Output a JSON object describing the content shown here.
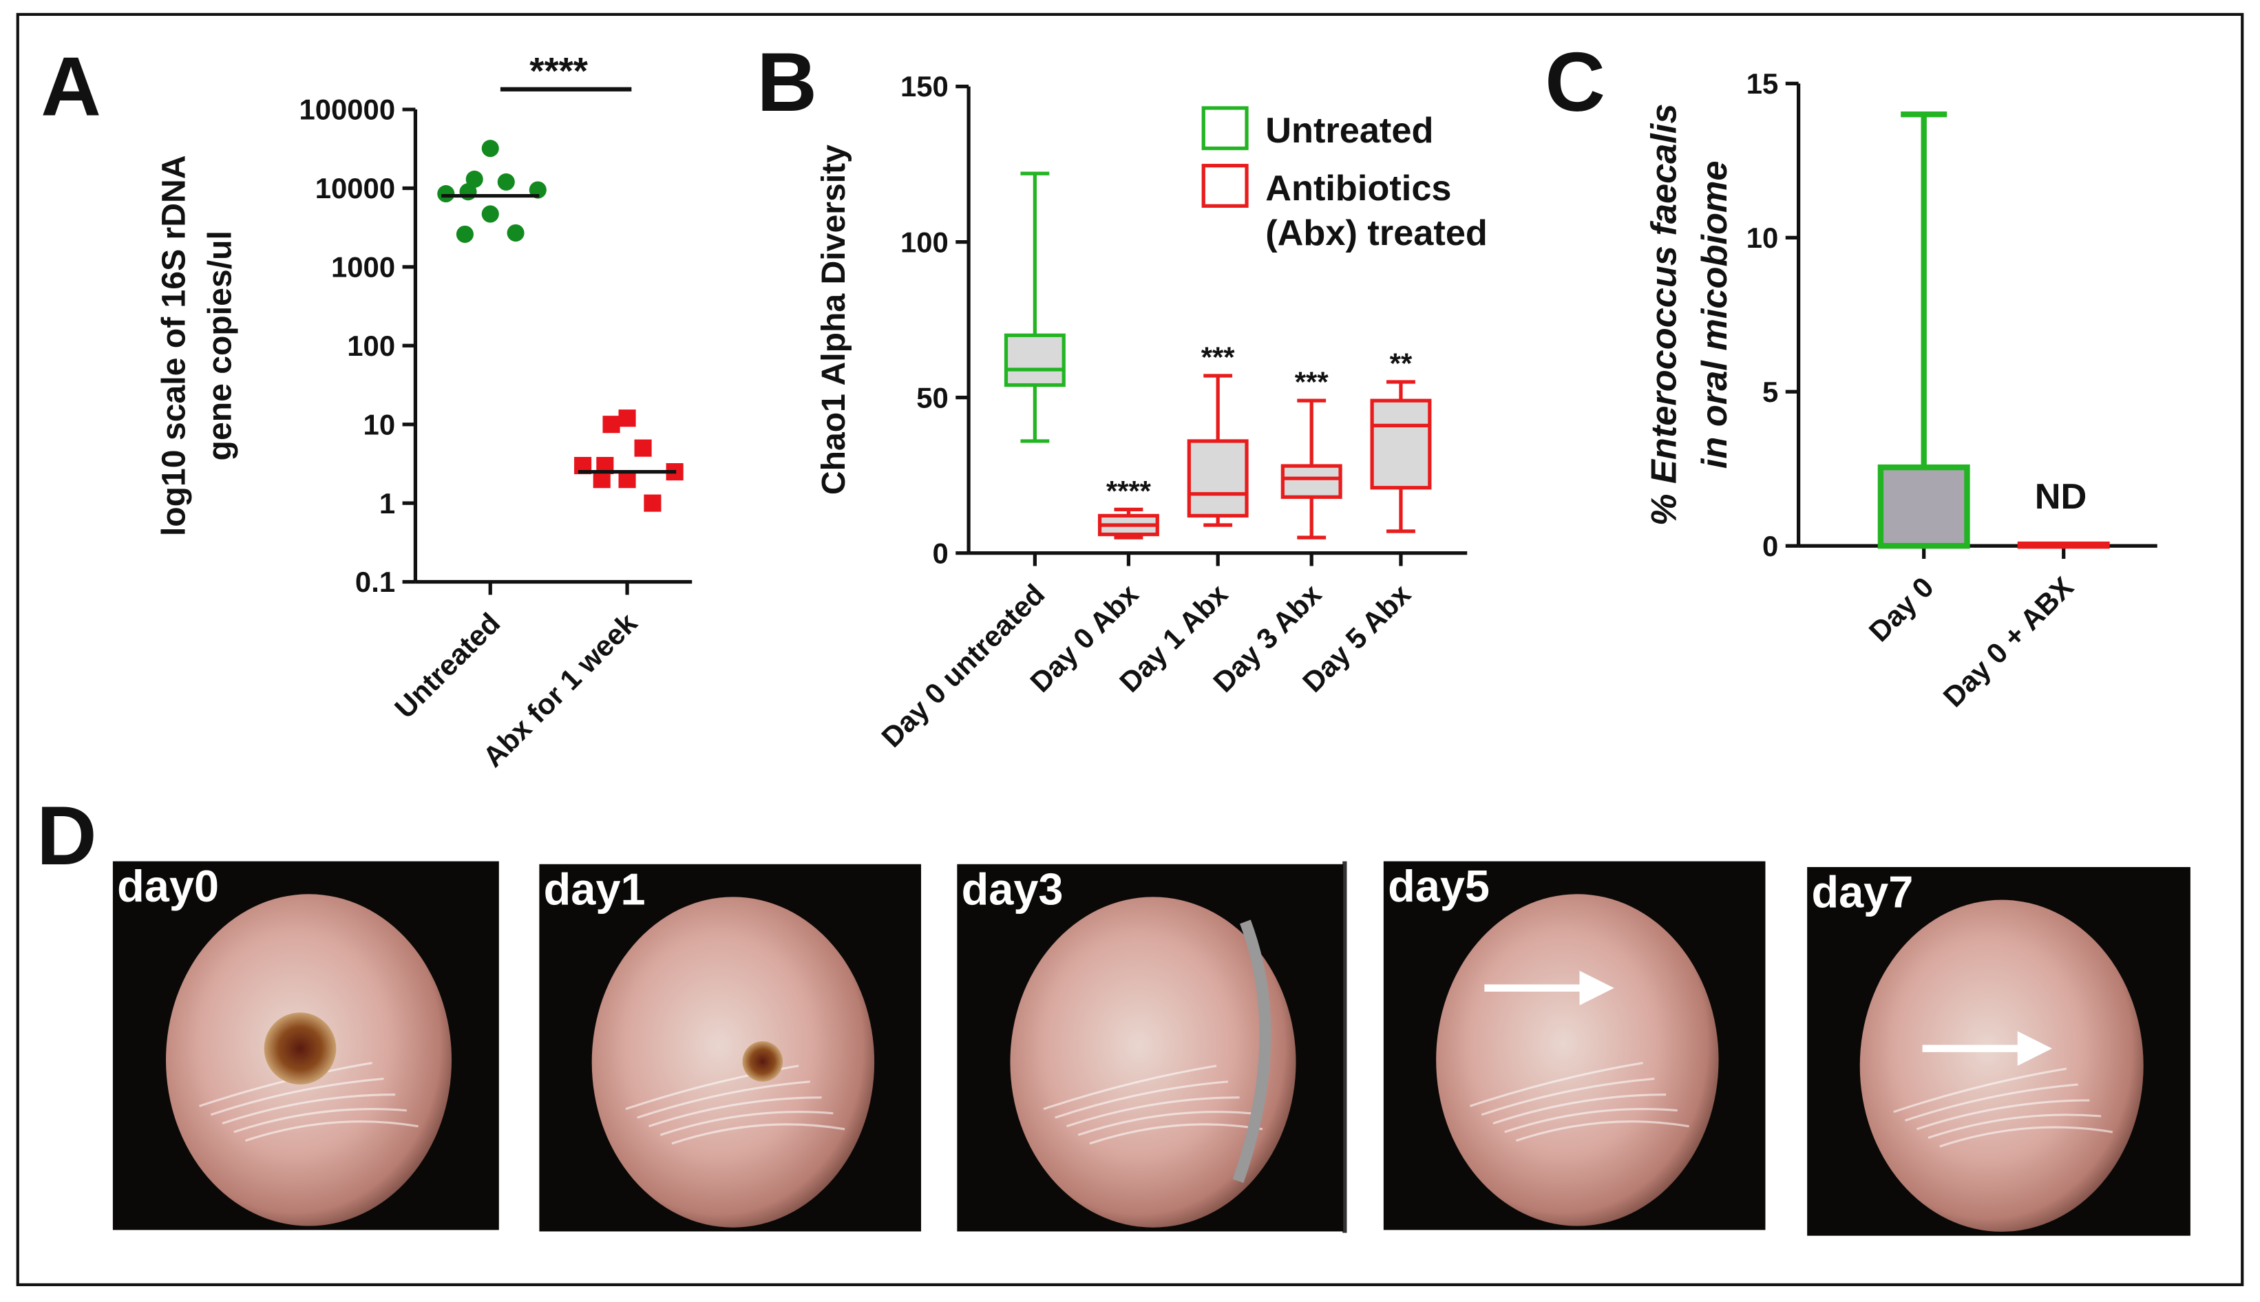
{
  "chart_data": [
    {
      "type": "scatter",
      "panel": "A",
      "ylabel": [
        "log10 scale of 16S rDNA",
        "gene copies/ul"
      ],
      "categories": [
        "Untreated",
        "Abx for 1 week"
      ],
      "groups": [
        {
          "color": "#138a1f",
          "marker": "circle",
          "values": [
            32000,
            13000,
            12000,
            8500,
            9000,
            9500,
            4700,
            2600,
            2700
          ],
          "median": 8000
        },
        {
          "color": "#e8141c",
          "marker": "square",
          "values": [
            12,
            10,
            5,
            3,
            3,
            2.5,
            2,
            2,
            1
          ],
          "median": 2.5
        }
      ],
      "yscale": "log",
      "ylim": [
        0.1,
        100000
      ],
      "yticks": [
        0.1,
        1,
        10,
        100,
        1000,
        10000,
        100000
      ],
      "significance": "****"
    },
    {
      "type": "box",
      "panel": "B",
      "ylabel": [
        "Chao1 Alpha Diversity"
      ],
      "categories": [
        "Day 0 untreated",
        "Day 0 Abx",
        "Day 1 Abx",
        "Day 3 Abx",
        "Day 5 Abx"
      ],
      "series": [
        {
          "name": "Untreated",
          "color": "#22b422"
        },
        {
          "name": "Antibiotics (Abx) treated",
          "color": "#e81c1c"
        }
      ],
      "boxes": [
        {
          "series": 0,
          "min": 36,
          "q1": 54,
          "median": 59,
          "q3": 70,
          "max": 122
        },
        {
          "series": 1,
          "min": 5,
          "q1": 6,
          "median": 9,
          "q3": 12,
          "max": 14
        },
        {
          "series": 1,
          "min": 9,
          "q1": 12,
          "median": 19,
          "q3": 36,
          "max": 57
        },
        {
          "series": 1,
          "min": 5,
          "q1": 18,
          "median": 24,
          "q3": 28,
          "max": 49
        },
        {
          "series": 1,
          "min": 7,
          "q1": 21,
          "median": 41,
          "q3": 49,
          "max": 55
        }
      ],
      "box_fill": "#d9d9d9",
      "significance": [
        null,
        "****",
        "***",
        "***",
        "**"
      ],
      "ylim": [
        0,
        150
      ],
      "yticks": [
        0,
        50,
        100,
        150
      ]
    },
    {
      "type": "bar",
      "panel": "C",
      "ylabel": [
        "% Enterococcus faecalis",
        "in oral micobiome"
      ],
      "categories": [
        "Day 0",
        "Day 0 + ABX"
      ],
      "values": [
        2.5,
        0
      ],
      "max": [
        14,
        null
      ],
      "colors": [
        "#22b422",
        "#e81c1c"
      ],
      "fill": "#a9a6b0",
      "annotations": [
        null,
        "ND"
      ],
      "ylim": [
        0,
        15
      ],
      "yticks": [
        0,
        5,
        10,
        15
      ]
    }
  ],
  "panel_d": {
    "panel": "D",
    "images": [
      {
        "label": "day0"
      },
      {
        "label": "day1"
      },
      {
        "label": "day3"
      },
      {
        "label": "day5"
      },
      {
        "label": "day7"
      }
    ]
  }
}
